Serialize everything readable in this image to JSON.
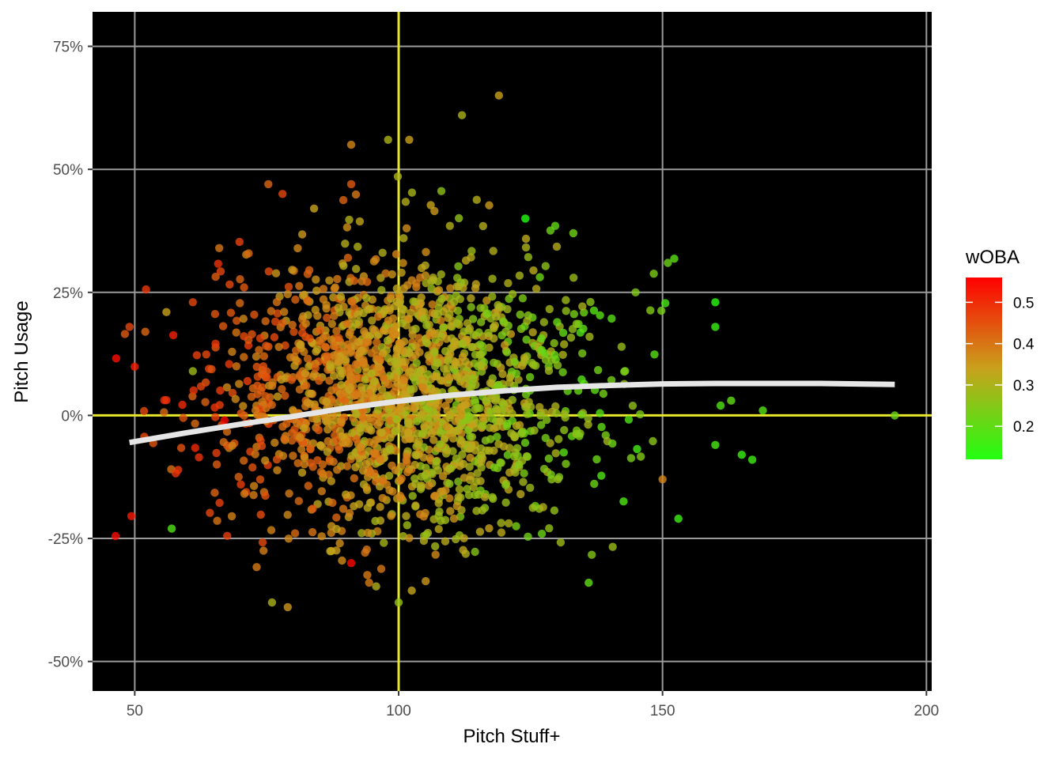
{
  "chart_data": {
    "type": "scatter",
    "title": "",
    "xlabel": "Pitch Stuff+",
    "ylabel": "Pitch Usage",
    "xlim": [
      42,
      201
    ],
    "ylim": [
      -56,
      82
    ],
    "x_ticks": [
      50,
      100,
      150,
      200
    ],
    "y_ticks": [
      -50,
      -25,
      0,
      25,
      50,
      75
    ],
    "x_tick_labels": [
      "50",
      "100",
      "150",
      "200"
    ],
    "y_tick_labels": [
      "-50%",
      "-25%",
      "0%",
      "25%",
      "50%",
      "75%"
    ],
    "grid": true,
    "background": "#000000",
    "reference_lines": {
      "x": 100,
      "y": 0,
      "color": "#e6e62a"
    },
    "color_scale": {
      "name": "wOBA",
      "min": 0.12,
      "max": 0.56,
      "low_color": "#22ff11",
      "mid_color": "#c9a11c",
      "high_color": "#ff0000",
      "ticks": [
        0.2,
        0.3,
        0.4,
        0.5
      ],
      "tick_labels": [
        "0.2",
        "0.3",
        "0.4",
        "0.5"
      ],
      "legend_position": "right"
    },
    "trend_line": {
      "color": "#e6e6e6",
      "points": [
        [
          49,
          -5.5
        ],
        [
          60,
          -3.5
        ],
        [
          70,
          -1.8
        ],
        [
          80,
          -0.2
        ],
        [
          90,
          1.5
        ],
        [
          100,
          2.9
        ],
        [
          110,
          4.1
        ],
        [
          120,
          5.0
        ],
        [
          130,
          5.7
        ],
        [
          140,
          6.1
        ],
        [
          150,
          6.4
        ],
        [
          160,
          6.5
        ],
        [
          170,
          6.5
        ],
        [
          180,
          6.5
        ],
        [
          194,
          6.3
        ]
      ]
    },
    "points": {
      "count": 1900,
      "cluster_center": [
        101,
        5
      ],
      "cluster_sd": [
        17,
        14
      ],
      "notable": [
        [
          49,
          18,
          0.46
        ],
        [
          52,
          17,
          0.42
        ],
        [
          56,
          21,
          0.34
        ],
        [
          57,
          -23,
          0.18
        ],
        [
          61,
          9,
          0.28
        ],
        [
          61,
          23,
          0.46
        ],
        [
          66,
          34,
          0.4
        ],
        [
          91,
          55,
          0.38
        ],
        [
          98,
          56,
          0.3
        ],
        [
          102,
          56,
          0.34
        ],
        [
          112,
          61,
          0.3
        ],
        [
          119,
          65,
          0.34
        ],
        [
          124,
          40,
          0.12
        ],
        [
          160,
          23,
          0.13
        ],
        [
          160,
          18,
          0.15
        ],
        [
          161,
          2,
          0.18
        ],
        [
          163,
          3,
          0.2
        ],
        [
          169,
          1,
          0.19
        ],
        [
          165,
          -8,
          0.15
        ],
        [
          167,
          -9,
          0.16
        ],
        [
          160,
          -6,
          0.17
        ],
        [
          153,
          -21,
          0.15
        ],
        [
          150,
          -13,
          0.38
        ],
        [
          151,
          31,
          0.22
        ],
        [
          194,
          0,
          0.22
        ],
        [
          91,
          -30,
          0.55
        ],
        [
          100,
          -38,
          0.27
        ],
        [
          76,
          -38,
          0.3
        ],
        [
          78,
          45,
          0.46
        ],
        [
          91,
          47,
          0.44
        ],
        [
          67,
          -1,
          0.55
        ],
        [
          136,
          -34,
          0.2
        ]
      ]
    }
  }
}
